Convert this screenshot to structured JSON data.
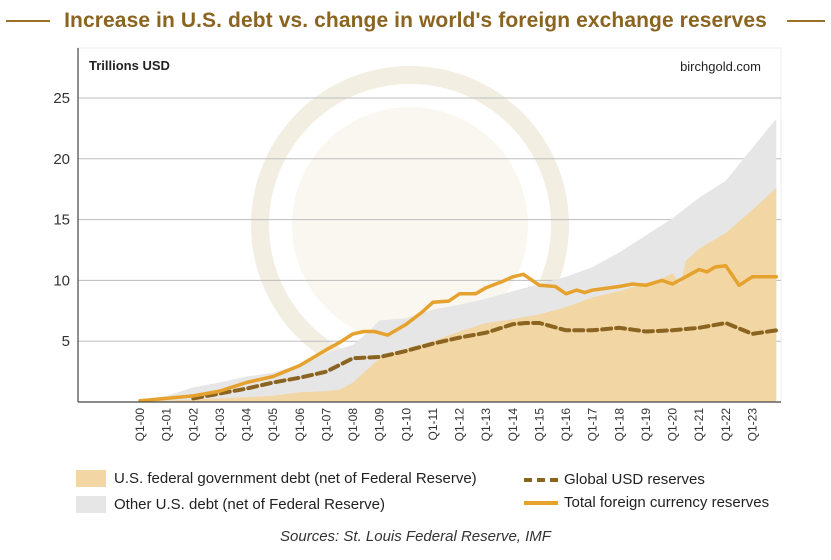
{
  "title": "Increase in U.S. debt vs. change in world's foreign exchange reserves",
  "unit_label": "Trillions USD",
  "watermark_text": "birchgold.com",
  "footer": "Sources: St. Louis Federal Reserve, IMF",
  "colors": {
    "title": "#8a6420",
    "fed_debt_fill": "#f2d6a3",
    "other_debt_fill": "#e6e6e6",
    "global_usd_line": "#8a6420",
    "total_fx_line": "#e5a22e"
  },
  "legend": {
    "fed_debt": "U.S. federal government debt (net of Federal Reserve)",
    "other_debt": "Other U.S. debt (net of Federal Reserve)",
    "global_usd": "Global USD reserves",
    "total_fx": "Total foreign currency reserves"
  },
  "chart_data": {
    "type": "area",
    "ylim": [
      0,
      25
    ],
    "yticks": [
      5,
      10,
      15,
      20,
      25
    ],
    "xlim": [
      2000,
      2024
    ],
    "x_tick_labels": [
      "Q1-00",
      "Q1-01",
      "Q1-02",
      "Q1-03",
      "Q1-04",
      "Q1-05",
      "Q1-06",
      "Q1-07",
      "Q1-08",
      "Q1-09",
      "Q1-10",
      "Q1-11",
      "Q1-12",
      "Q1-13",
      "Q1-14",
      "Q1-15",
      "Q1-16",
      "Q1-17",
      "Q1-18",
      "Q1-19",
      "Q1-20",
      "Q1-21",
      "Q1-22",
      "Q1-23"
    ],
    "grid": true,
    "series": [
      {
        "name": "U.S. federal government debt (net of Federal Reserve)",
        "kind": "area",
        "x": [
          2000,
          2001,
          2002,
          2003,
          2004,
          2005,
          2006,
          2007,
          2007.5,
          2008,
          2008.5,
          2009,
          2010,
          2011,
          2012,
          2013,
          2014,
          2015,
          2016,
          2017,
          2018,
          2019,
          2019.5,
          2020,
          2020.3,
          2020.5,
          2021,
          2022,
          2023,
          2023.9
        ],
        "values": [
          0.1,
          0.1,
          0.2,
          0.3,
          0.4,
          0.5,
          0.8,
          0.9,
          1.0,
          1.6,
          2.6,
          3.6,
          4.4,
          5.0,
          5.8,
          6.5,
          6.8,
          7.2,
          7.8,
          8.6,
          9.1,
          9.8,
          10.0,
          10.6,
          9.6,
          11.6,
          12.6,
          13.9,
          15.8,
          17.6
        ]
      },
      {
        "name": "Other U.S. debt (net of Federal Reserve)",
        "kind": "area",
        "x": [
          2000,
          2001,
          2002,
          2003,
          2004,
          2005,
          2006,
          2007,
          2008,
          2008.5,
          2009,
          2010,
          2011,
          2012,
          2013,
          2014,
          2015,
          2016,
          2017,
          2018,
          2019,
          2020,
          2021,
          2022,
          2023,
          2023.9
        ],
        "values": [
          0.2,
          0.5,
          1.2,
          1.6,
          2.1,
          2.4,
          3.1,
          4.0,
          4.7,
          5.6,
          6.7,
          6.9,
          7.6,
          8.0,
          8.5,
          9.1,
          9.7,
          10.3,
          11.1,
          12.3,
          13.7,
          15.1,
          16.8,
          18.2,
          20.9,
          23.3
        ]
      },
      {
        "name": "Global USD reserves",
        "kind": "line",
        "x": [
          2002,
          2003,
          2004,
          2005,
          2006,
          2007,
          2008,
          2009,
          2010,
          2011,
          2012,
          2013,
          2014,
          2014.5,
          2015,
          2016,
          2017,
          2018,
          2019,
          2020,
          2021,
          2022,
          2023,
          2023.9
        ],
        "values": [
          0.3,
          0.7,
          1.1,
          1.6,
          2.0,
          2.5,
          3.6,
          3.7,
          4.2,
          4.8,
          5.3,
          5.7,
          6.4,
          6.5,
          6.5,
          5.9,
          5.9,
          6.1,
          5.8,
          5.9,
          6.1,
          6.5,
          5.6,
          5.9
        ]
      },
      {
        "name": "Total foreign currency reserves",
        "kind": "line",
        "x": [
          2000,
          2001,
          2002,
          2003,
          2004,
          2005,
          2006,
          2007,
          2007.5,
          2008,
          2008.4,
          2008.8,
          2009.3,
          2010,
          2010.6,
          2011,
          2011.6,
          2012,
          2012.6,
          2013,
          2013.6,
          2014,
          2014.4,
          2015,
          2015.6,
          2016,
          2016.4,
          2016.7,
          2017,
          2018,
          2018.5,
          2019,
          2019.3,
          2019.6,
          2020,
          2020.5,
          2021,
          2021.3,
          2021.6,
          2022,
          2022.5,
          2023,
          2023.9
        ],
        "values": [
          0.1,
          0.3,
          0.5,
          0.9,
          1.6,
          2.1,
          3.0,
          4.3,
          4.9,
          5.6,
          5.8,
          5.8,
          5.5,
          6.4,
          7.4,
          8.2,
          8.3,
          8.9,
          8.9,
          9.4,
          9.9,
          10.3,
          10.5,
          9.6,
          9.5,
          8.9,
          9.2,
          9.0,
          9.2,
          9.5,
          9.7,
          9.6,
          9.8,
          10.0,
          9.7,
          10.3,
          10.9,
          10.7,
          11.1,
          11.2,
          9.6,
          10.3,
          10.3
        ]
      }
    ]
  }
}
